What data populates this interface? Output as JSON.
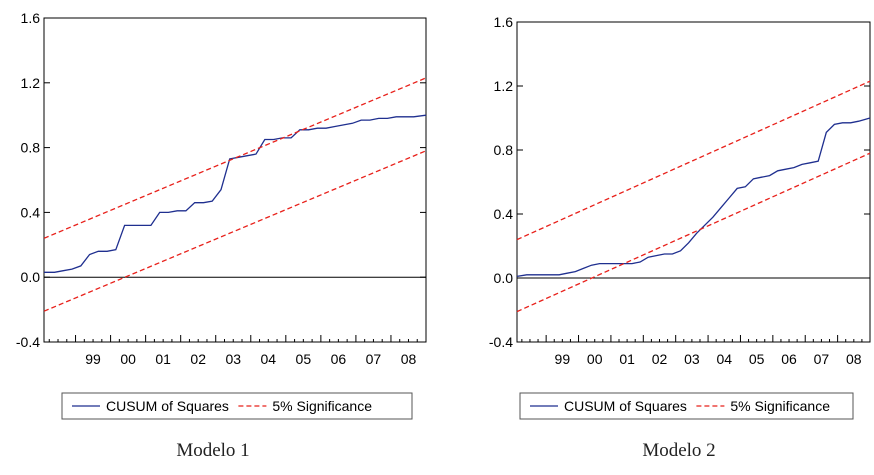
{
  "charts": [
    {
      "caption": "Modelo 1"
    },
    {
      "caption": "Modelo 2"
    }
  ],
  "colors": {
    "cusum": "#1f2f8f",
    "significance": "#e8201a",
    "zero_line": "#000000",
    "axis": "#000000"
  },
  "chart_data": [
    {
      "type": "line",
      "title": "",
      "xlabel": "",
      "ylabel": "",
      "ylim": [
        -0.4,
        1.6
      ],
      "xlim": [
        1998.1,
        2009.0
      ],
      "yticks": [
        -0.4,
        0.0,
        0.4,
        0.8,
        1.2,
        1.6
      ],
      "ytick_labels": [
        "-0.4",
        "0.0",
        "0.4",
        "0.8",
        "1.2",
        "1.6"
      ],
      "xtick_labels": [
        {
          "label": "99",
          "x": 1999.5
        },
        {
          "label": "00",
          "x": 2000.5
        },
        {
          "label": "01",
          "x": 2001.5
        },
        {
          "label": "02",
          "x": 2002.5
        },
        {
          "label": "03",
          "x": 2003.5
        },
        {
          "label": "04",
          "x": 2004.5
        },
        {
          "label": "05",
          "x": 2005.5
        },
        {
          "label": "06",
          "x": 2006.5
        },
        {
          "label": "07",
          "x": 2007.5
        },
        {
          "label": "08",
          "x": 2008.5
        }
      ],
      "grid": false,
      "legend_position": "bottom",
      "reference_line": 0.0,
      "series": [
        {
          "name": "CUSUM of Squares",
          "style": "solid",
          "x": [
            1998.1,
            1998.4,
            1998.65,
            1998.9,
            1999.15,
            1999.4,
            1999.65,
            1999.9,
            2000.15,
            2000.4,
            2000.65,
            2000.9,
            2001.15,
            2001.4,
            2001.65,
            2001.9,
            2002.15,
            2002.4,
            2002.65,
            2002.9,
            2003.15,
            2003.4,
            2003.65,
            2003.9,
            2004.15,
            2004.4,
            2004.65,
            2004.9,
            2005.15,
            2005.4,
            2005.65,
            2005.9,
            2006.15,
            2006.4,
            2006.65,
            2006.9,
            2007.15,
            2007.4,
            2007.65,
            2007.9,
            2008.15,
            2008.4,
            2008.65,
            2009.0
          ],
          "y": [
            0.03,
            0.03,
            0.04,
            0.05,
            0.07,
            0.14,
            0.16,
            0.16,
            0.17,
            0.32,
            0.32,
            0.32,
            0.32,
            0.4,
            0.4,
            0.41,
            0.41,
            0.46,
            0.46,
            0.47,
            0.54,
            0.73,
            0.74,
            0.75,
            0.76,
            0.85,
            0.85,
            0.86,
            0.86,
            0.91,
            0.91,
            0.92,
            0.92,
            0.93,
            0.94,
            0.95,
            0.97,
            0.97,
            0.98,
            0.98,
            0.99,
            0.99,
            0.99,
            1.0
          ]
        },
        {
          "name": "5% Significance",
          "style": "dashed",
          "x": [
            1998.1,
            2009.0
          ],
          "y": [
            0.24,
            1.23
          ]
        },
        {
          "name": "5% Significance",
          "style": "dashed",
          "x": [
            1998.1,
            2009.0
          ],
          "y": [
            -0.21,
            0.78
          ]
        }
      ]
    },
    {
      "type": "line",
      "title": "",
      "xlabel": "",
      "ylabel": "",
      "ylim": [
        -0.4,
        1.6
      ],
      "xlim": [
        1998.1,
        2009.0
      ],
      "yticks": [
        -0.4,
        0.0,
        0.4,
        0.8,
        1.2,
        1.6
      ],
      "ytick_labels": [
        "-0.4",
        "0.0",
        "0.4",
        "0.8",
        "1.2",
        "1.6"
      ],
      "xtick_labels": [
        {
          "label": "99",
          "x": 1999.5
        },
        {
          "label": "00",
          "x": 2000.5
        },
        {
          "label": "01",
          "x": 2001.5
        },
        {
          "label": "02",
          "x": 2002.5
        },
        {
          "label": "03",
          "x": 2003.5
        },
        {
          "label": "04",
          "x": 2004.5
        },
        {
          "label": "05",
          "x": 2005.5
        },
        {
          "label": "06",
          "x": 2006.5
        },
        {
          "label": "07",
          "x": 2007.5
        },
        {
          "label": "08",
          "x": 2008.5
        }
      ],
      "grid": false,
      "legend_position": "bottom",
      "reference_line": 0.0,
      "series": [
        {
          "name": "CUSUM of Squares",
          "style": "solid",
          "x": [
            1998.1,
            1998.4,
            1998.65,
            1998.9,
            1999.15,
            1999.4,
            1999.65,
            1999.9,
            2000.15,
            2000.4,
            2000.65,
            2000.9,
            2001.15,
            2001.4,
            2001.65,
            2001.9,
            2002.15,
            2002.4,
            2002.65,
            2002.9,
            2003.15,
            2003.4,
            2003.65,
            2003.9,
            2004.15,
            2004.4,
            2004.65,
            2004.9,
            2005.15,
            2005.4,
            2005.65,
            2005.9,
            2006.15,
            2006.4,
            2006.65,
            2006.9,
            2007.15,
            2007.4,
            2007.65,
            2007.9,
            2008.15,
            2008.4,
            2008.65,
            2009.0
          ],
          "y": [
            0.01,
            0.02,
            0.02,
            0.02,
            0.02,
            0.02,
            0.03,
            0.04,
            0.06,
            0.08,
            0.09,
            0.09,
            0.09,
            0.09,
            0.09,
            0.1,
            0.13,
            0.14,
            0.15,
            0.15,
            0.17,
            0.22,
            0.28,
            0.33,
            0.38,
            0.44,
            0.5,
            0.56,
            0.57,
            0.62,
            0.63,
            0.64,
            0.67,
            0.68,
            0.69,
            0.71,
            0.72,
            0.73,
            0.91,
            0.96,
            0.97,
            0.97,
            0.98,
            1.0
          ]
        },
        {
          "name": "5% Significance",
          "style": "dashed",
          "x": [
            1998.1,
            2009.0
          ],
          "y": [
            0.24,
            1.23
          ]
        },
        {
          "name": "5% Significance",
          "style": "dashed",
          "x": [
            1998.1,
            2009.0
          ],
          "y": [
            -0.21,
            0.78
          ]
        }
      ]
    }
  ]
}
